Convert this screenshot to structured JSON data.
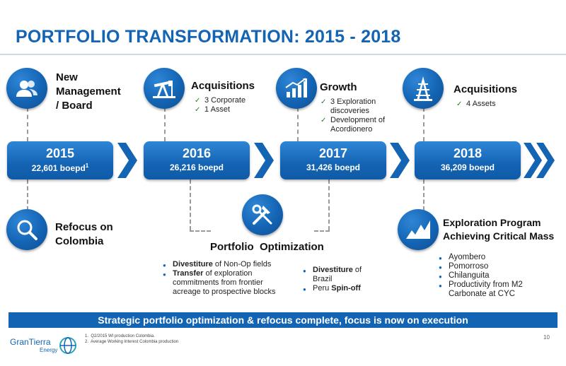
{
  "title": "PORTFOLIO TRANSFORMATION: 2015 - 2018",
  "timeline": [
    {
      "year": "2015",
      "production": "22,601 boepd",
      "footnote_ref": "1"
    },
    {
      "year": "2016",
      "production": "26,216 boepd"
    },
    {
      "year": "2017",
      "production": "31,426 boepd"
    },
    {
      "year": "2018",
      "production": "36,209 boepd"
    }
  ],
  "top": {
    "management": {
      "label": [
        "New",
        "Management",
        "/ Board"
      ],
      "icon": "people-icon"
    },
    "acq2016": {
      "label": "Acquisitions",
      "items": [
        "3 Corporate",
        "1 Asset"
      ],
      "icon": "pump-jack-icon"
    },
    "growth": {
      "label": "Growth",
      "items": [
        "3 Exploration discoveries",
        "Development of Acordionero"
      ],
      "icon": "growth-chart-icon"
    },
    "acq2018": {
      "label": "Acquisitions",
      "items": [
        "4 Assets"
      ],
      "icon": "drilling-rig-icon"
    }
  },
  "bottom": {
    "refocus": {
      "label": [
        "Refocus on",
        "Colombia"
      ],
      "icon": "magnifier-icon"
    },
    "optimization": {
      "label": "Portfolio  Optimization",
      "icon": "tools-icon",
      "left_items": [
        {
          "bold": "Divestiture",
          "rest": " of Non-Op fields"
        },
        {
          "bold": "Transfer",
          "rest": " of exploration commitments from frontier acreage to prospective blocks"
        }
      ],
      "right_items": [
        {
          "bold": "Divestiture",
          "rest": " of Brazil"
        },
        {
          "plain": "Peru ",
          "bold": "Spin-off"
        }
      ]
    },
    "exploration": {
      "label": [
        "Exploration Program",
        "Achieving Critical Mass"
      ],
      "icon": "mountain-chart-icon",
      "items": [
        "Ayombero",
        "Pomorroso",
        "Chilanguita",
        "Productivity from M2 Carbonate at CYC"
      ]
    }
  },
  "banner": "Strategic portfolio optimization & refocus complete,  focus is now on execution",
  "footnotes": [
    "Q2/2015 WI production Colombia.",
    "Average Working Interest Colombia production"
  ],
  "logo": {
    "name": "GranTierra",
    "sub": "Energy"
  },
  "page_number": "10",
  "colors": {
    "brand_blue": "#1464b4",
    "banner": "#1464b4"
  }
}
